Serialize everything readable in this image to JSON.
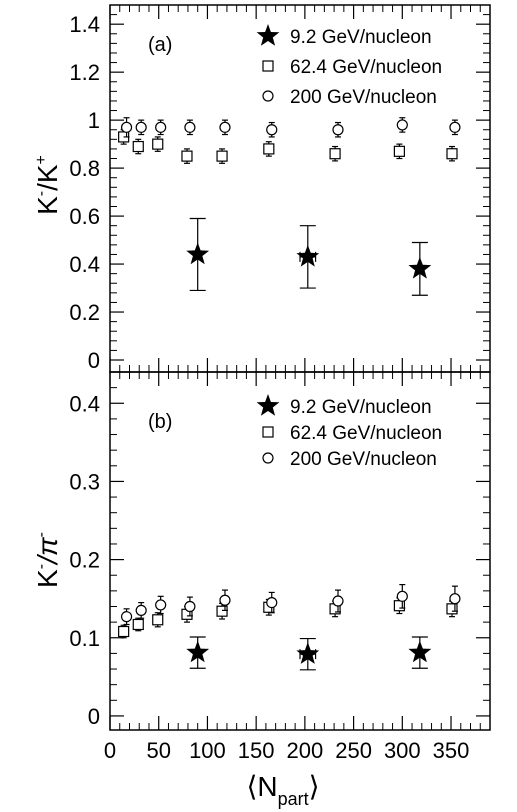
{
  "chart_data": [
    {
      "type": "scatter",
      "panel_label": "(a)",
      "ylabel_main": "K",
      "ylabel_sup1": "-",
      "ylabel_sep": "/K",
      "ylabel_sup2": "+",
      "ylim": [
        -0.05,
        1.48
      ],
      "yticks": [
        0,
        0.2,
        0.4,
        0.6,
        0.8,
        1,
        1.2,
        1.4
      ],
      "ytick_labels": [
        "0",
        "0.2",
        "0.4",
        "0.6",
        "0.8",
        "1",
        "1.2",
        "1.4"
      ],
      "legend_position": "top-right",
      "series": [
        {
          "name": "9.2 GeV/nucleon",
          "marker": "star-filled",
          "points": [
            {
              "x": 90,
              "y": 0.44,
              "err": 0.15,
              "xerr": 0
            },
            {
              "x": 203,
              "y": 0.43,
              "err": 0.13,
              "xerr": 8
            },
            {
              "x": 318,
              "y": 0.38,
              "err": 0.11,
              "xerr": 0
            }
          ]
        },
        {
          "name": "62.4 GeV/nucleon",
          "marker": "square-open",
          "points": [
            {
              "x": 14,
              "y": 0.93,
              "err": 0.03
            },
            {
              "x": 29,
              "y": 0.89,
              "err": 0.03
            },
            {
              "x": 49,
              "y": 0.9,
              "err": 0.03
            },
            {
              "x": 79,
              "y": 0.85,
              "err": 0.03
            },
            {
              "x": 115,
              "y": 0.85,
              "err": 0.03
            },
            {
              "x": 163,
              "y": 0.88,
              "err": 0.03
            },
            {
              "x": 231,
              "y": 0.86,
              "err": 0.03
            },
            {
              "x": 297,
              "y": 0.87,
              "err": 0.03
            },
            {
              "x": 351,
              "y": 0.86,
              "err": 0.03
            }
          ]
        },
        {
          "name": "200 GeV/nucleon",
          "marker": "circle-open",
          "points": [
            {
              "x": 17,
              "y": 0.97,
              "err": 0.04
            },
            {
              "x": 32,
              "y": 0.97,
              "err": 0.03
            },
            {
              "x": 52,
              "y": 0.97,
              "err": 0.03
            },
            {
              "x": 82,
              "y": 0.97,
              "err": 0.03
            },
            {
              "x": 118,
              "y": 0.97,
              "err": 0.03
            },
            {
              "x": 166,
              "y": 0.96,
              "err": 0.03
            },
            {
              "x": 234,
              "y": 0.96,
              "err": 0.03
            },
            {
              "x": 300,
              "y": 0.98,
              "err": 0.03
            },
            {
              "x": 354,
              "y": 0.97,
              "err": 0.03
            }
          ]
        }
      ]
    },
    {
      "type": "scatter",
      "panel_label": "(b)",
      "ylabel_main": "K",
      "ylabel_sup1": "-",
      "ylabel_sep": "/π",
      "ylabel_sup2": "-",
      "xlabel_main": "⟨N",
      "xlabel_sub": "part",
      "xlabel_end": "⟩",
      "xlim": [
        0,
        390
      ],
      "xticks": [
        0,
        50,
        100,
        150,
        200,
        250,
        300,
        350
      ],
      "xtick_labels": [
        "0",
        "50",
        "100",
        "150",
        "200",
        "250",
        "300",
        "350"
      ],
      "ylim": [
        -0.018,
        0.44
      ],
      "yticks": [
        0,
        0.1,
        0.2,
        0.3,
        0.4
      ],
      "ytick_labels": [
        "0",
        "0.1",
        "0.2",
        "0.3",
        "0.4"
      ],
      "legend_position": "top-right",
      "series": [
        {
          "name": "9.2 GeV/nucleon",
          "marker": "star-filled",
          "points": [
            {
              "x": 90,
              "y": 0.081,
              "err": 0.02,
              "xerr": 0
            },
            {
              "x": 203,
              "y": 0.079,
              "err": 0.02,
              "xerr": 8
            },
            {
              "x": 318,
              "y": 0.081,
              "err": 0.02,
              "xerr": 0
            }
          ]
        },
        {
          "name": "62.4 GeV/nucleon",
          "marker": "square-open",
          "points": [
            {
              "x": 14,
              "y": 0.108,
              "err": 0.008
            },
            {
              "x": 29,
              "y": 0.117,
              "err": 0.008
            },
            {
              "x": 49,
              "y": 0.123,
              "err": 0.009
            },
            {
              "x": 79,
              "y": 0.13,
              "err": 0.01
            },
            {
              "x": 115,
              "y": 0.134,
              "err": 0.01
            },
            {
              "x": 163,
              "y": 0.139,
              "err": 0.01
            },
            {
              "x": 231,
              "y": 0.137,
              "err": 0.01
            },
            {
              "x": 297,
              "y": 0.141,
              "err": 0.01
            },
            {
              "x": 351,
              "y": 0.137,
              "err": 0.01
            }
          ]
        },
        {
          "name": "200 GeV/nucleon",
          "marker": "circle-open",
          "points": [
            {
              "x": 17,
              "y": 0.127,
              "err": 0.01
            },
            {
              "x": 32,
              "y": 0.135,
              "err": 0.01
            },
            {
              "x": 52,
              "y": 0.142,
              "err": 0.011
            },
            {
              "x": 82,
              "y": 0.14,
              "err": 0.012
            },
            {
              "x": 118,
              "y": 0.148,
              "err": 0.013
            },
            {
              "x": 166,
              "y": 0.145,
              "err": 0.013
            },
            {
              "x": 234,
              "y": 0.147,
              "err": 0.014
            },
            {
              "x": 300,
              "y": 0.153,
              "err": 0.015
            },
            {
              "x": 354,
              "y": 0.15,
              "err": 0.016
            }
          ]
        }
      ]
    }
  ]
}
